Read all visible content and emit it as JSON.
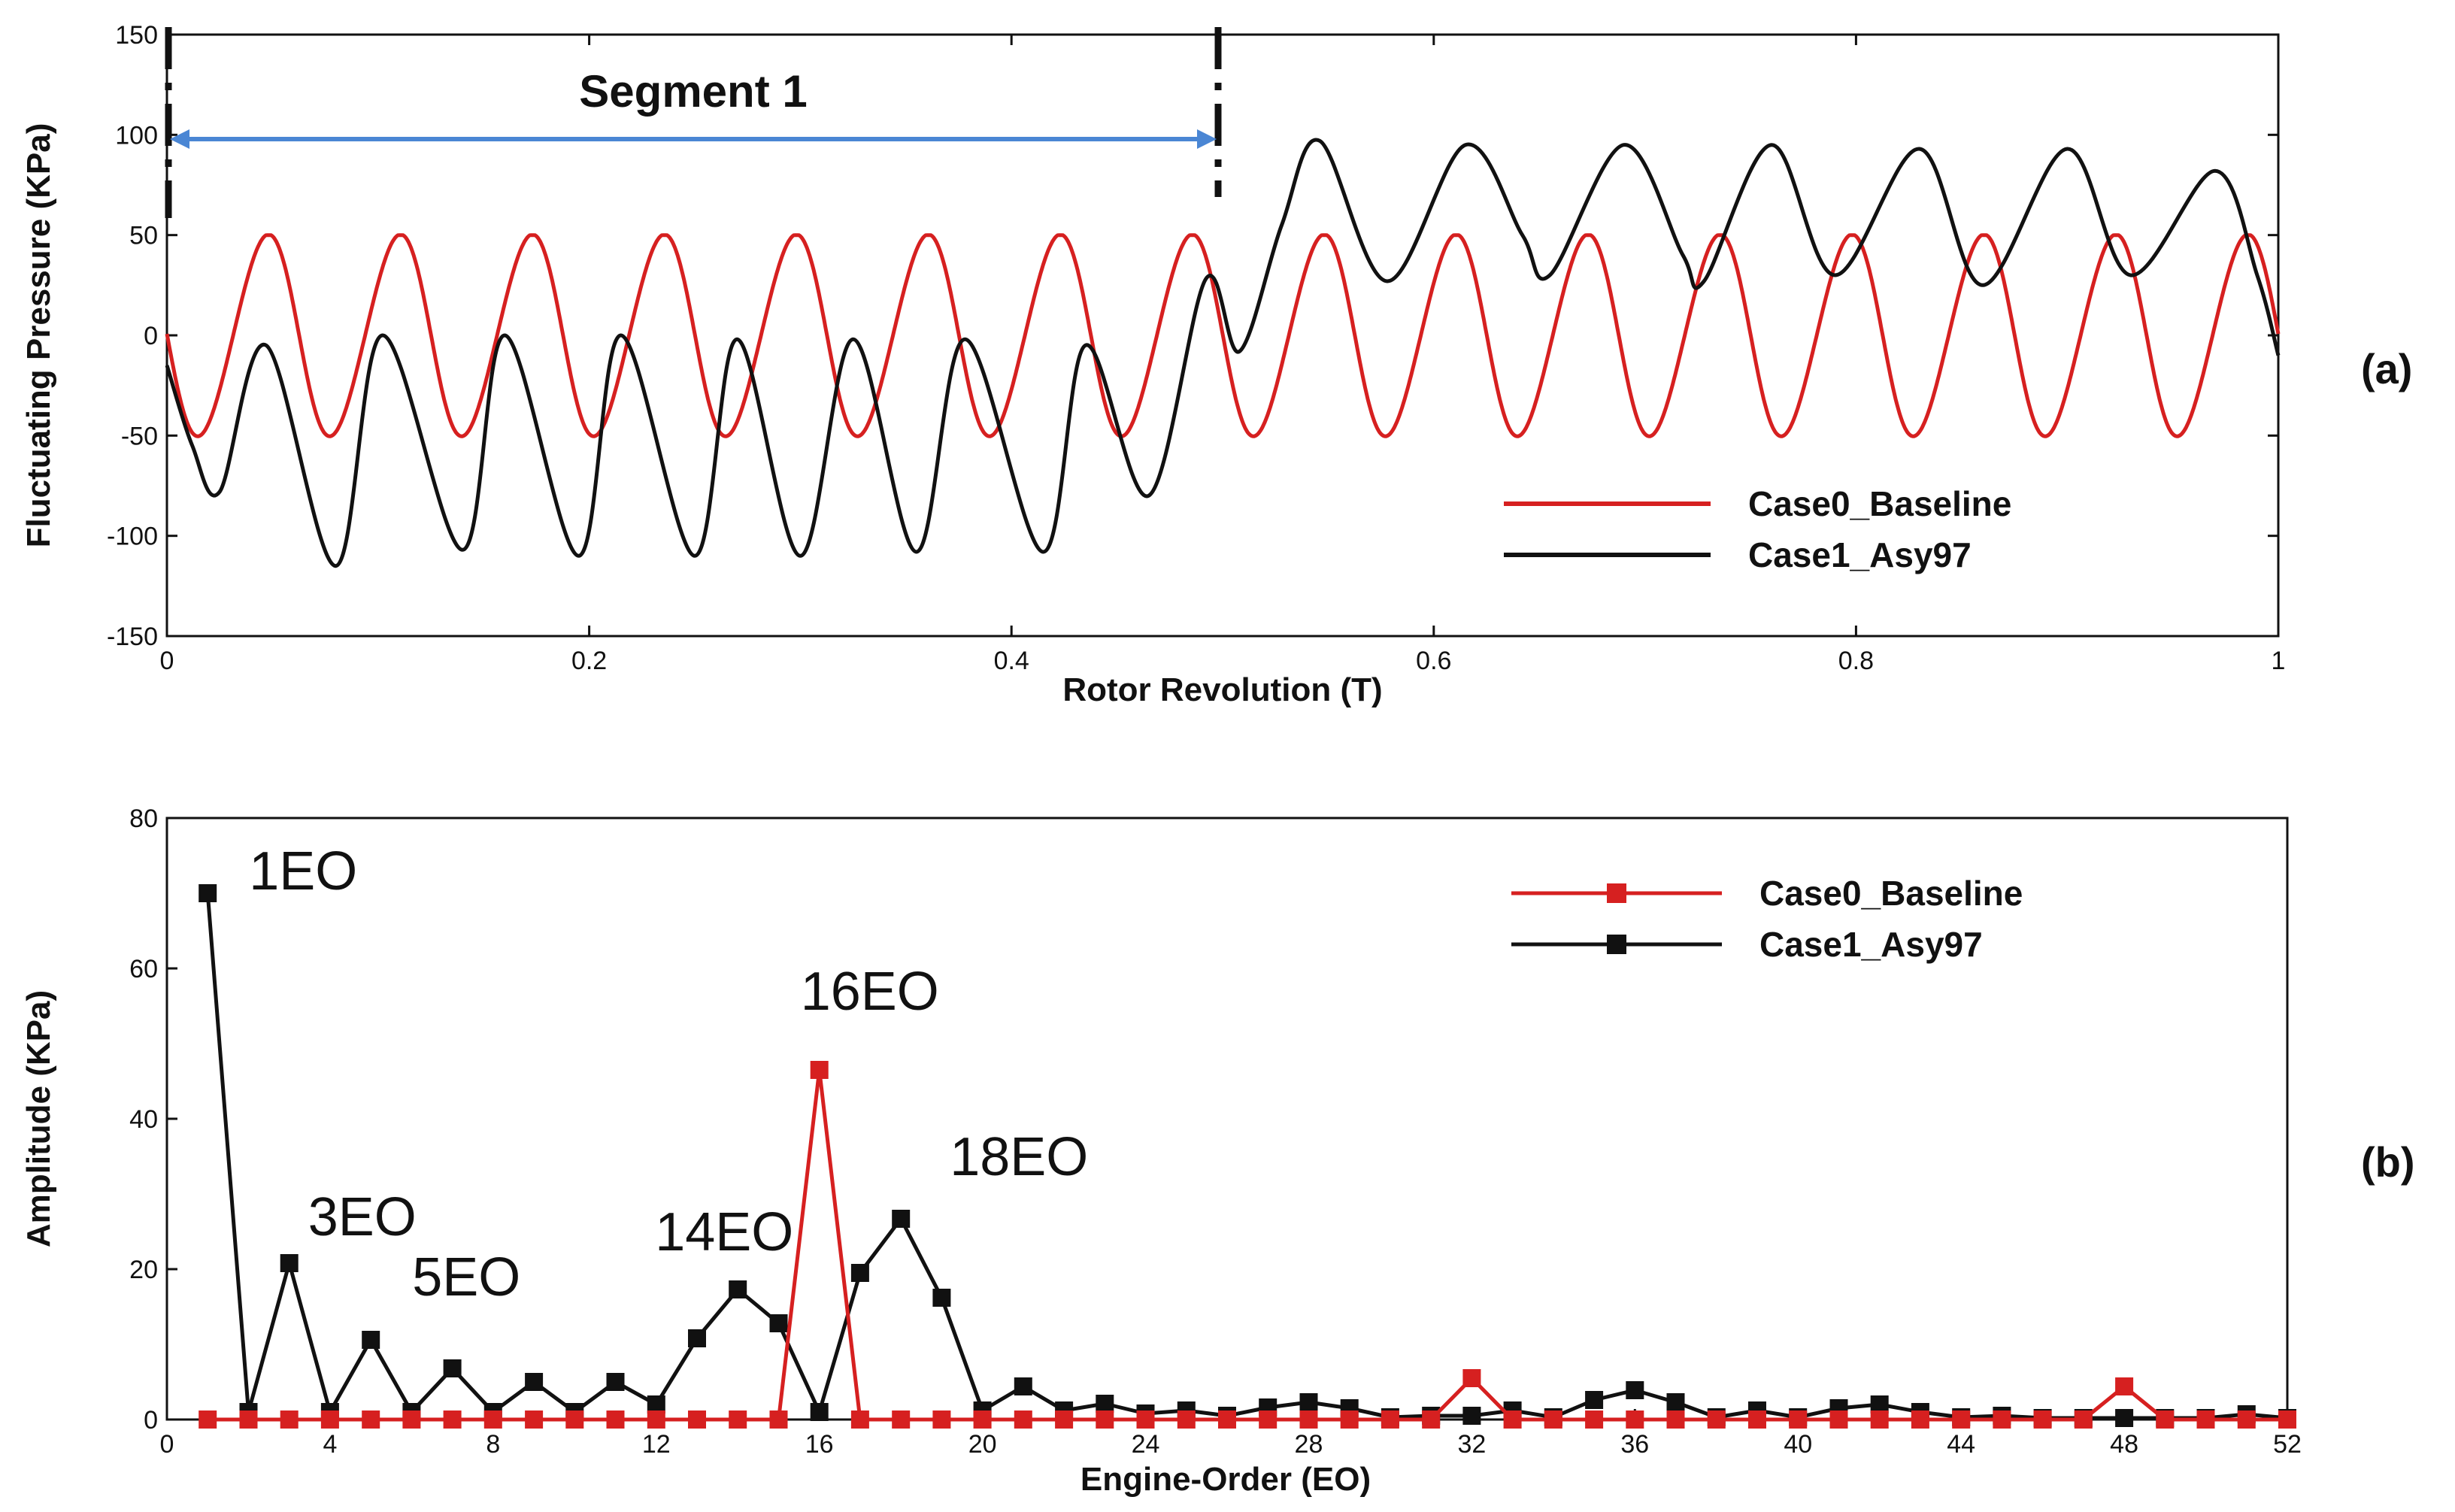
{
  "chart_data": [
    {
      "panel_label": "(a)",
      "type": "line",
      "xlabel": "Rotor Revolution (T)",
      "ylabel": "Fluctuating Pressure (KPa)",
      "xlim": [
        0,
        1
      ],
      "ylim": [
        -150,
        150
      ],
      "xticks": [
        0,
        0.2,
        0.4,
        0.6,
        0.8,
        1
      ],
      "xtick_labels": [
        "0",
        "0.2",
        "0.4",
        "0.6",
        "0.8",
        "1"
      ],
      "yticks": [
        -150,
        -100,
        -50,
        0,
        50,
        100,
        150
      ],
      "ytick_labels": [
        "-150",
        "-100",
        "-50",
        "0",
        "50",
        "100",
        "150"
      ],
      "legend": [
        "Case0_Baseline",
        "Case1_Asy97"
      ],
      "segment_annotation": {
        "label": "Segment 1",
        "x_start": 0,
        "x_end": 0.5,
        "y": 98
      },
      "series": [
        {
          "name": "Case0_Baseline",
          "color": "#d62020",
          "description": "periodic wave, 16 cycles per revolution, amplitude about 50 KPa",
          "model": {
            "kind": "sine",
            "cycles": 16,
            "amplitude": 50,
            "offset": 0,
            "phase_peak_x": 0.047
          }
        },
        {
          "name": "Case1_Asy97",
          "color": "#111111",
          "description": "periodic wave, 9 cycles in first half (troughs near -110, peaks near 0), 7 cycles in second half (peaks near 95, troughs near 25)",
          "points": [
            [
              0,
              -15
            ],
            [
              0.012,
              -55
            ],
            [
              0.025,
              -78
            ],
            [
              0.047,
              -5
            ],
            [
              0.08,
              -115
            ],
            [
              0.102,
              0
            ],
            [
              0.14,
              -107
            ],
            [
              0.16,
              0
            ],
            [
              0.195,
              -110
            ],
            [
              0.215,
              0
            ],
            [
              0.25,
              -110
            ],
            [
              0.27,
              -2
            ],
            [
              0.3,
              -110
            ],
            [
              0.325,
              -2
            ],
            [
              0.355,
              -108
            ],
            [
              0.378,
              -2
            ],
            [
              0.415,
              -108
            ],
            [
              0.435,
              -5
            ],
            [
              0.465,
              -80
            ],
            [
              0.492,
              28
            ],
            [
              0.508,
              -8
            ],
            [
              0.528,
              55
            ],
            [
              0.546,
              97
            ],
            [
              0.578,
              27
            ],
            [
              0.615,
              95
            ],
            [
              0.642,
              50
            ],
            [
              0.655,
              30
            ],
            [
              0.69,
              95
            ],
            [
              0.718,
              40
            ],
            [
              0.728,
              27
            ],
            [
              0.76,
              95
            ],
            [
              0.79,
              30
            ],
            [
              0.83,
              93
            ],
            [
              0.86,
              25
            ],
            [
              0.9,
              93
            ],
            [
              0.93,
              30
            ],
            [
              0.97,
              82
            ],
            [
              0.99,
              30
            ],
            [
              1.0,
              -10
            ]
          ]
        }
      ]
    },
    {
      "panel_label": "(b)",
      "type": "line",
      "marker": "square",
      "xlabel": "Engine-Order (EO)",
      "ylabel": "Amplitude (KPa)",
      "xlim": [
        0,
        52
      ],
      "ylim": [
        0,
        80
      ],
      "xticks": [
        0,
        4,
        8,
        12,
        16,
        20,
        24,
        28,
        32,
        36,
        40,
        44,
        48,
        52
      ],
      "xtick_labels": [
        "0",
        "4",
        "8",
        "12",
        "16",
        "20",
        "24",
        "28",
        "32",
        "36",
        "40",
        "44",
        "48",
        "52"
      ],
      "yticks": [
        0,
        20,
        40,
        60,
        80
      ],
      "ytick_labels": [
        "0",
        "20",
        "40",
        "60",
        "80"
      ],
      "legend": [
        "Case0_Baseline",
        "Case1_Asy97"
      ],
      "annotations": [
        {
          "text": "1EO",
          "color": "#111111",
          "x": 1,
          "y": 70
        },
        {
          "text": "3EO",
          "color": "#111111",
          "x": 3,
          "y": 21
        },
        {
          "text": "5EO",
          "color": "#111111",
          "x": 5,
          "y": 11
        },
        {
          "text": "14EO",
          "color": "#111111",
          "x": 14,
          "y": 17.5
        },
        {
          "text": "16EO",
          "color": "#d62020",
          "x": 16,
          "y": 47
        },
        {
          "text": "18EO",
          "color": "#111111",
          "x": 18,
          "y": 27
        }
      ],
      "x": [
        1,
        2,
        3,
        4,
        5,
        6,
        7,
        8,
        9,
        10,
        11,
        12,
        13,
        14,
        15,
        16,
        17,
        18,
        19,
        20,
        21,
        22,
        23,
        24,
        25,
        26,
        27,
        28,
        29,
        30,
        31,
        32,
        33,
        34,
        35,
        36,
        37,
        38,
        39,
        40,
        41,
        42,
        43,
        44,
        45,
        46,
        47,
        48,
        49,
        50,
        51,
        52
      ],
      "series": [
        {
          "name": "Case0_Baseline",
          "color": "#d62020",
          "values": [
            0,
            0,
            0,
            0,
            0,
            0,
            0,
            0,
            0,
            0,
            0,
            0,
            0,
            0,
            0,
            46.5,
            0,
            0,
            0,
            0,
            0,
            0,
            0,
            0,
            0,
            0,
            0,
            0,
            0,
            0,
            0,
            5.5,
            0,
            0,
            0,
            0,
            0,
            0,
            0,
            0,
            0,
            0,
            0,
            0,
            0,
            0,
            0,
            4.4,
            0,
            0,
            0,
            0
          ]
        },
        {
          "name": "Case1_Asy97",
          "color": "#111111",
          "values": [
            70,
            1,
            20.8,
            1,
            10.6,
            1,
            6.8,
            1,
            5,
            1,
            5,
            2,
            10.8,
            17.3,
            12.8,
            1,
            19.5,
            26.7,
            16.2,
            1.2,
            4.4,
            1.2,
            2.1,
            0.8,
            1.2,
            0.5,
            1.6,
            2.3,
            1.5,
            0.3,
            0.5,
            0.5,
            1.2,
            0.3,
            2.6,
            3.9,
            2.3,
            0.3,
            1.2,
            0.3,
            1.5,
            2,
            1,
            0.3,
            0.5,
            0.2,
            0.2,
            0.2,
            0.2,
            0.2,
            0.7,
            0.2
          ]
        }
      ]
    }
  ]
}
